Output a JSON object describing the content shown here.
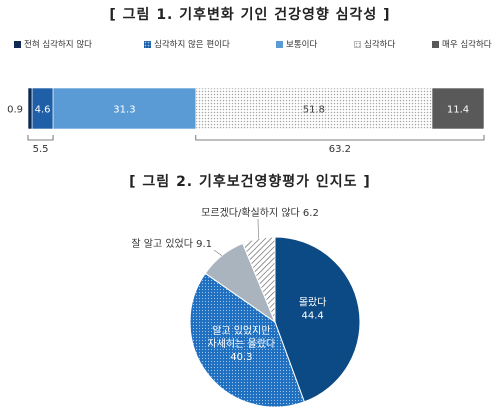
{
  "figure1": {
    "title": "[ 그림 1. 기후변화 기인 건강영향 심각성 ]",
    "legend": [
      {
        "label": "전혀 심각하지 않다",
        "color": "#0e2a52",
        "pattern": "solid"
      },
      {
        "label": "심각하지 않은 편이다",
        "color": "#1f5fa8",
        "pattern": "dots"
      },
      {
        "label": "보통이다",
        "color": "#5b9bd5",
        "pattern": "solid"
      },
      {
        "label": "심각하다",
        "color": "#c9c9c9",
        "pattern": "dots-gray"
      },
      {
        "label": "매우 심각하다",
        "color": "#595959",
        "pattern": "solid"
      }
    ],
    "annotations": {
      "combined_low": "5.5",
      "combined_high": "63.2"
    }
  },
  "figure2": {
    "title": "[ 그림 2. 기후보건영향평가 인지도 ]",
    "annotations": {
      "s0": [
        "몰랐다",
        "44.4"
      ],
      "s1": [
        "알고 있었지만",
        "자세히는 몰랐다",
        "40.3"
      ],
      "s2": [
        "잘 알고 있었다 9.1"
      ],
      "s3": [
        "모르겠다/확실하지 않다 6.2"
      ]
    }
  },
  "chart_data": [
    {
      "type": "bar",
      "orientation": "horizontal-stacked-100",
      "title": "[ 그림 1. 기후변화 기인 건강영향 심각성 ]",
      "series": [
        {
          "name": "전혀 심각하지 않다",
          "values": [
            0.9
          ],
          "label": "0.9"
        },
        {
          "name": "심각하지 않은 편이다",
          "values": [
            4.6
          ],
          "label": "4.6"
        },
        {
          "name": "보통이다",
          "values": [
            31.3
          ],
          "label": "31.3"
        },
        {
          "name": "심각하다",
          "values": [
            51.8
          ],
          "label": "51.8"
        },
        {
          "name": "매우 심각하다",
          "values": [
            11.4
          ],
          "label": "11.4"
        }
      ],
      "grid": false,
      "legend_position": "top"
    },
    {
      "type": "pie",
      "title": "[ 그림 2. 기후보건영향평가 인지도 ]",
      "slices": [
        {
          "name": "몰랐다",
          "value": 44.4,
          "label": "44.4",
          "color": "#0b4a85",
          "pattern": "solid"
        },
        {
          "name": "알고 있었지만 자세히는 몰랐다",
          "value": 40.3,
          "label": "40.3",
          "color": "#1f6fc0",
          "pattern": "dots"
        },
        {
          "name": "잘 알고 있었다",
          "value": 9.1,
          "label": "9.1",
          "color": "#aab4bf",
          "pattern": "solid"
        },
        {
          "name": "모르겠다/확실하지 않다",
          "value": 6.2,
          "label": "6.2",
          "color": "#ffffff",
          "pattern": "hatch"
        }
      ]
    }
  ]
}
